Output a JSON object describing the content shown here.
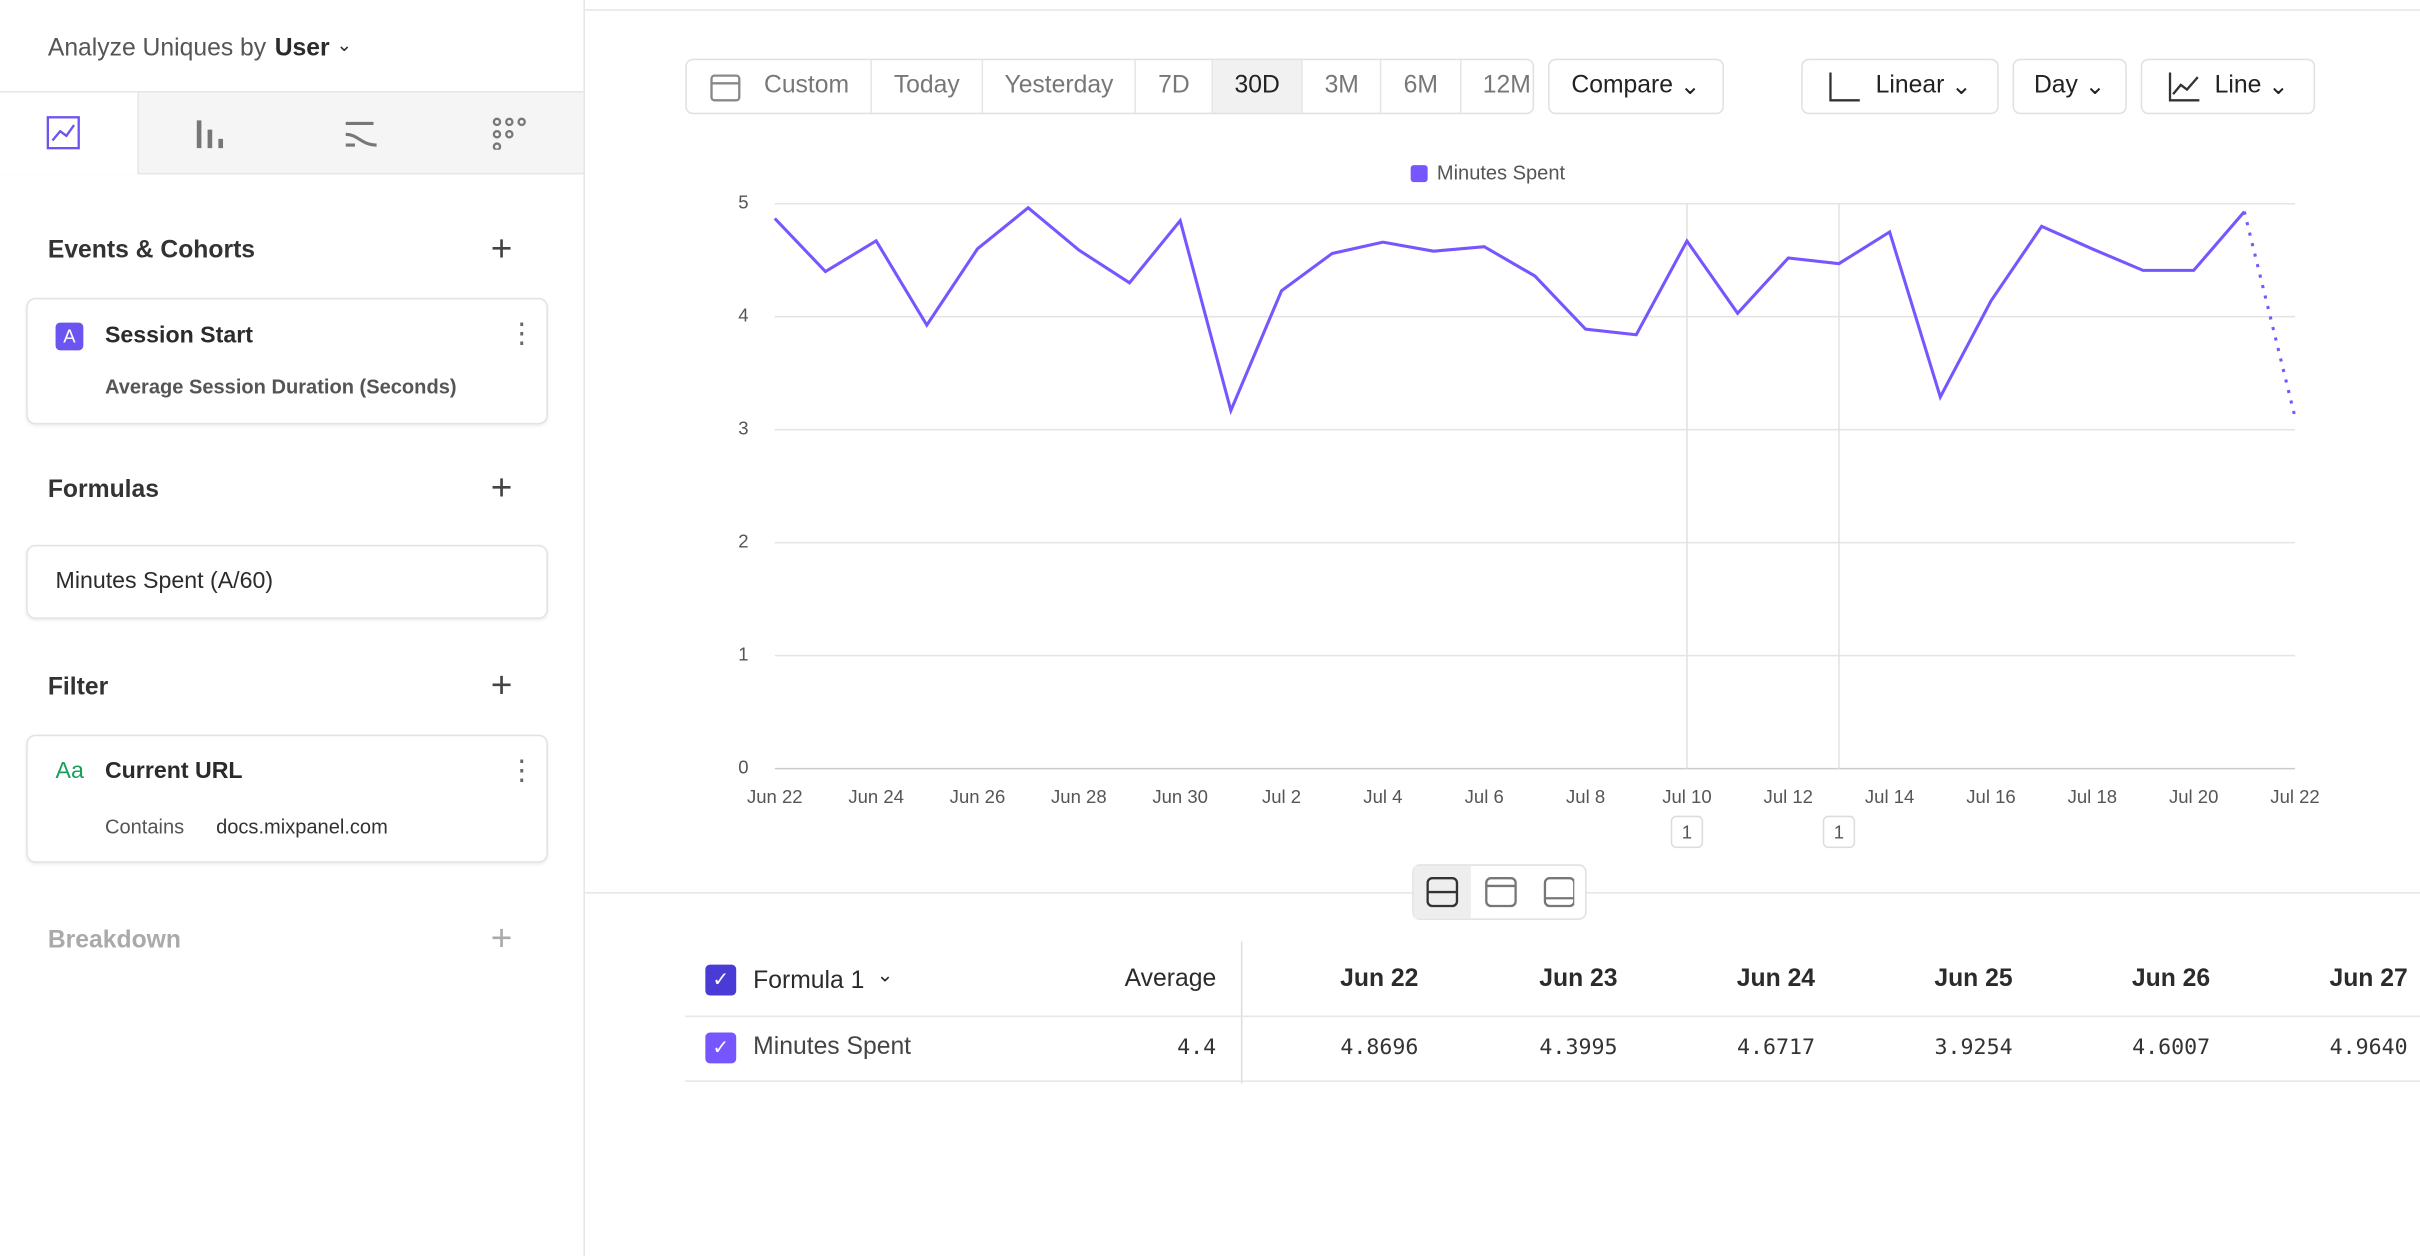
{
  "sidebar": {
    "analyze_label": "Analyze Uniques by",
    "analyze_value": "User",
    "events": {
      "title": "Events & Cohorts",
      "badge": "A",
      "name": "Session Start",
      "detail": "Average Session Duration (Seconds)"
    },
    "formulas": {
      "title": "Formulas",
      "name": "Minutes Spent (A/60)"
    },
    "filter": {
      "title": "Filter",
      "badge": "Aa",
      "name": "Current URL",
      "operator": "Contains",
      "value": "docs.mixpanel.com"
    },
    "breakdown": {
      "title": "Breakdown"
    }
  },
  "toolbar": {
    "ranges": [
      "Custom",
      "Today",
      "Yesterday",
      "7D",
      "30D",
      "3M",
      "6M",
      "12M"
    ],
    "compare": "Compare",
    "scale": "Linear",
    "interval": "Day",
    "chart": "Line"
  },
  "chart_data": {
    "type": "line",
    "categories": [
      "Jun 22",
      null,
      "Jun 24",
      null,
      "Jun 26",
      null,
      "Jun 28",
      null,
      "Jun 30",
      null,
      "Jul 2",
      null,
      "Jul 4",
      null,
      "Jul 6",
      null,
      "Jul 8",
      null,
      "Jul 10",
      null,
      "Jul 12",
      null,
      "Jul 14",
      null,
      "Jul 16",
      null,
      "Jul 18",
      null,
      "Jul 20",
      null,
      "Jul 22"
    ],
    "series": [
      {
        "name": "Minutes Spent",
        "color": "#7856ff",
        "values": [
          4.8696,
          4.3995,
          4.6717,
          3.9254,
          4.6007,
          4.964,
          4.59,
          4.3,
          4.85,
          3.17,
          4.23,
          4.56,
          4.66,
          4.58,
          4.62,
          4.36,
          3.89,
          3.84,
          4.67,
          4.03,
          4.52,
          4.47,
          4.75,
          3.29,
          4.14,
          4.8,
          4.6,
          4.41,
          4.41,
          4.93,
          3.11
        ]
      }
    ],
    "last_segment_dotted": true,
    "ylim": [
      0,
      5
    ],
    "yticks": [
      0,
      1,
      2,
      3,
      4,
      5
    ],
    "grid": true,
    "annotations": [
      {
        "index": 18,
        "label": "1"
      },
      {
        "index": 21,
        "label": "1"
      }
    ]
  },
  "table": {
    "header": [
      "Formula 1",
      "Average",
      "Jun 22",
      "Jun 23",
      "Jun 24",
      "Jun 25",
      "Jun 26",
      "Jun 27"
    ],
    "rows": [
      [
        "Minutes Spent",
        "4.4",
        "4.8696",
        "4.3995",
        "4.6717",
        "3.9254",
        "4.6007",
        "4.9640"
      ]
    ]
  }
}
